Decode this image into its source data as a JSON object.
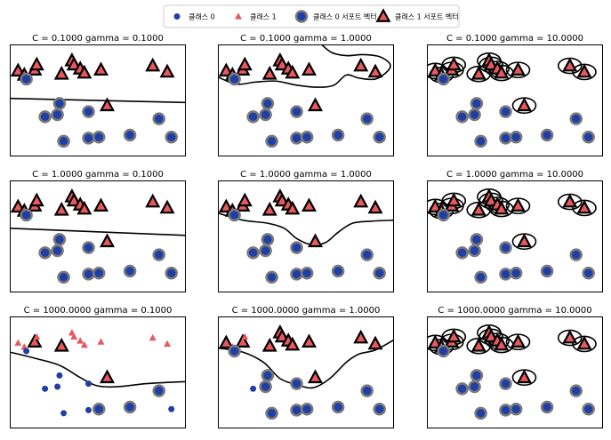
{
  "legend": {
    "position": "top-center",
    "entries": [
      {
        "key": "class0",
        "label": "클래스 0",
        "marker": "circle",
        "color": "#1f3fa6"
      },
      {
        "key": "class1",
        "label": "클래스 1",
        "marker": "triangle",
        "color": "#e8595e"
      },
      {
        "key": "sv0",
        "label": "클래스 0 서포트 벡터",
        "marker": "circle-ringed",
        "color": "#1f3fa6"
      },
      {
        "key": "sv1",
        "label": "클래스 1 서포트 벡터",
        "marker": "triangle-outlined",
        "color": "#e8595e"
      }
    ]
  },
  "colors": {
    "class0": "#1f3fa6",
    "class1": "#e8595e",
    "sv_ring": "#7a7a7a",
    "boundary": "#000000"
  },
  "chart_data": {
    "type": "scatter",
    "layout": "3x3 grid",
    "x_range": [
      -1.2,
      7.3
    ],
    "y_range": [
      -6.5,
      4.5
    ],
    "axes_ticks": "hidden",
    "points": [
      {
        "x": -0.8,
        "y": 1.9,
        "cls": 1
      },
      {
        "x": -0.5,
        "y": 1.5,
        "cls": 1
      },
      {
        "x": 0.0,
        "y": 2.0,
        "cls": 1
      },
      {
        "x": 0.1,
        "y": 2.5,
        "cls": 1
      },
      {
        "x": 1.3,
        "y": 1.6,
        "cls": 1
      },
      {
        "x": 1.8,
        "y": 2.9,
        "cls": 1
      },
      {
        "x": 1.9,
        "y": 2.5,
        "cls": 1
      },
      {
        "x": 2.2,
        "y": 2.1,
        "cls": 1
      },
      {
        "x": 2.4,
        "y": 1.7,
        "cls": 1
      },
      {
        "x": 3.2,
        "y": 2.0,
        "cls": 1
      },
      {
        "x": 5.7,
        "y": 2.4,
        "cls": 1
      },
      {
        "x": 6.4,
        "y": 1.8,
        "cls": 1
      },
      {
        "x": 3.5,
        "y": -1.5,
        "cls": 1
      },
      {
        "x": -0.4,
        "y": 1.1,
        "cls": 0
      },
      {
        "x": 1.2,
        "y": -1.3,
        "cls": 0
      },
      {
        "x": 0.5,
        "y": -2.6,
        "cls": 0
      },
      {
        "x": 1.1,
        "y": -2.4,
        "cls": 0
      },
      {
        "x": 2.6,
        "y": -2.1,
        "cls": 0
      },
      {
        "x": 1.4,
        "y": -5.0,
        "cls": 0
      },
      {
        "x": 2.6,
        "y": -4.7,
        "cls": 0
      },
      {
        "x": 3.1,
        "y": -4.6,
        "cls": 0
      },
      {
        "x": 4.6,
        "y": -4.4,
        "cls": 0
      },
      {
        "x": 6.0,
        "y": -2.8,
        "cls": 0
      },
      {
        "x": 6.6,
        "y": -4.6,
        "cls": 0
      }
    ],
    "panels": [
      {
        "title": "C = 0.1000 gamma = 0.1000",
        "C": 0.1,
        "gamma": 0.1,
        "support_vectors": [
          0,
          1,
          2,
          3,
          4,
          5,
          6,
          7,
          8,
          9,
          10,
          11,
          12,
          13,
          14,
          15,
          16,
          17,
          18,
          19,
          20,
          21,
          22,
          23
        ],
        "boundary": [
          {
            "x": -1.2,
            "y": -0.8
          },
          {
            "x": 7.3,
            "y": -1.2
          }
        ]
      },
      {
        "title": "C = 0.1000 gamma = 1.0000",
        "C": 0.1,
        "gamma": 1.0,
        "support_vectors": [
          0,
          1,
          2,
          3,
          4,
          5,
          6,
          7,
          8,
          9,
          10,
          11,
          12,
          13,
          14,
          15,
          16,
          17,
          18,
          19,
          20,
          21,
          22,
          23
        ],
        "boundary": [
          {
            "x": -1.2,
            "y": 1.3
          },
          {
            "x": -0.3,
            "y": 0.6
          },
          {
            "x": 0.6,
            "y": 0.8
          },
          {
            "x": 1.6,
            "y": 0.9
          },
          {
            "x": 2.6,
            "y": 0.5
          },
          {
            "x": 3.6,
            "y": 0.3
          },
          {
            "x": 4.4,
            "y": 0.5
          },
          {
            "x": 5.0,
            "y": 1.5
          },
          {
            "x": 5.6,
            "y": 1.2
          },
          {
            "x": 6.4,
            "y": 1.1
          },
          {
            "x": 7.0,
            "y": 1.9
          },
          {
            "x": 7.1,
            "y": 2.6
          },
          {
            "x": 6.6,
            "y": 3.3
          },
          {
            "x": 5.8,
            "y": 3.5
          },
          {
            "x": 5.0,
            "y": 3.4
          },
          {
            "x": 4.3,
            "y": 3.7
          },
          {
            "x": 3.8,
            "y": 4.5
          }
        ]
      },
      {
        "title": "C = 0.1000 gamma = 10.0000",
        "C": 0.1,
        "gamma": 10.0,
        "support_vectors": [
          0,
          1,
          2,
          3,
          4,
          5,
          6,
          7,
          8,
          9,
          10,
          11,
          12,
          13,
          14,
          15,
          16,
          17,
          18,
          19,
          20,
          21,
          22,
          23
        ],
        "boundary": []
      },
      {
        "title": "C = 1.0000 gamma = 0.1000",
        "C": 1.0,
        "gamma": 0.1,
        "support_vectors": [
          0,
          1,
          2,
          3,
          4,
          5,
          6,
          7,
          8,
          9,
          10,
          11,
          12,
          13,
          14,
          15,
          16,
          17,
          18,
          19,
          20,
          21,
          22,
          23
        ],
        "boundary": [
          {
            "x": -1.2,
            "y": -0.2
          },
          {
            "x": 7.3,
            "y": -0.9
          }
        ]
      },
      {
        "title": "C = 1.0000 gamma = 1.0000",
        "C": 1.0,
        "gamma": 1.0,
        "support_vectors": [
          0,
          1,
          2,
          3,
          4,
          5,
          6,
          7,
          8,
          9,
          10,
          11,
          12,
          13,
          14,
          15,
          16,
          17,
          18,
          19,
          20,
          21,
          22,
          23
        ],
        "boundary": [
          {
            "x": -1.2,
            "y": 1.3
          },
          {
            "x": 0.0,
            "y": 0.6
          },
          {
            "x": 1.2,
            "y": 0.3
          },
          {
            "x": 2.0,
            "y": -0.2
          },
          {
            "x": 2.6,
            "y": -1.2
          },
          {
            "x": 3.3,
            "y": -1.8
          },
          {
            "x": 4.0,
            "y": -1.6
          },
          {
            "x": 4.6,
            "y": -0.6
          },
          {
            "x": 5.3,
            "y": 0.3
          },
          {
            "x": 6.2,
            "y": 0.5
          },
          {
            "x": 7.3,
            "y": 0.6
          }
        ]
      },
      {
        "title": "C = 1.0000 gamma = 10.0000",
        "C": 1.0,
        "gamma": 10.0,
        "support_vectors": [
          0,
          1,
          2,
          3,
          4,
          5,
          6,
          7,
          8,
          9,
          10,
          11,
          12,
          13,
          14,
          15,
          16,
          17,
          18,
          19,
          20,
          21,
          22,
          23
        ],
        "boundary": []
      },
      {
        "title": "C = 1000.0000 gamma = 0.1000",
        "C": 1000.0,
        "gamma": 0.1,
        "support_vectors": [
          2,
          4,
          12,
          20,
          21,
          22
        ],
        "boundary": [
          {
            "x": -1.2,
            "y": 1.0
          },
          {
            "x": 0.0,
            "y": 0.4
          },
          {
            "x": 1.2,
            "y": -0.3
          },
          {
            "x": 2.2,
            "y": -1.5
          },
          {
            "x": 3.0,
            "y": -2.3
          },
          {
            "x": 4.0,
            "y": -2.4
          },
          {
            "x": 5.4,
            "y": -2.1
          },
          {
            "x": 7.3,
            "y": -1.9
          }
        ]
      },
      {
        "title": "C = 1000.0000 gamma = 1.0000",
        "C": 1000.0,
        "gamma": 1.0,
        "support_vectors": [
          0,
          2,
          4,
          5,
          6,
          7,
          8,
          9,
          10,
          11,
          12,
          13,
          14,
          16,
          17,
          18,
          19,
          20,
          21,
          22,
          23
        ],
        "boundary": [
          {
            "x": -1.2,
            "y": 1.4
          },
          {
            "x": 0.0,
            "y": 1.0
          },
          {
            "x": 1.0,
            "y": 0.0
          },
          {
            "x": 1.8,
            "y": -1.6
          },
          {
            "x": 2.6,
            "y": -2.2
          },
          {
            "x": 3.4,
            "y": -2.5
          },
          {
            "x": 4.2,
            "y": -1.6
          },
          {
            "x": 5.0,
            "y": 0.0
          },
          {
            "x": 5.6,
            "y": 0.8
          },
          {
            "x": 6.4,
            "y": 1.2
          },
          {
            "x": 7.3,
            "y": 2.2
          }
        ]
      },
      {
        "title": "C = 1000.0000 gamma = 10.0000",
        "C": 1000.0,
        "gamma": 10.0,
        "support_vectors": [
          0,
          1,
          2,
          3,
          4,
          5,
          6,
          7,
          8,
          9,
          10,
          11,
          12,
          13,
          14,
          15,
          16,
          17,
          18,
          19,
          20,
          21,
          22,
          23
        ],
        "boundary": []
      }
    ]
  }
}
